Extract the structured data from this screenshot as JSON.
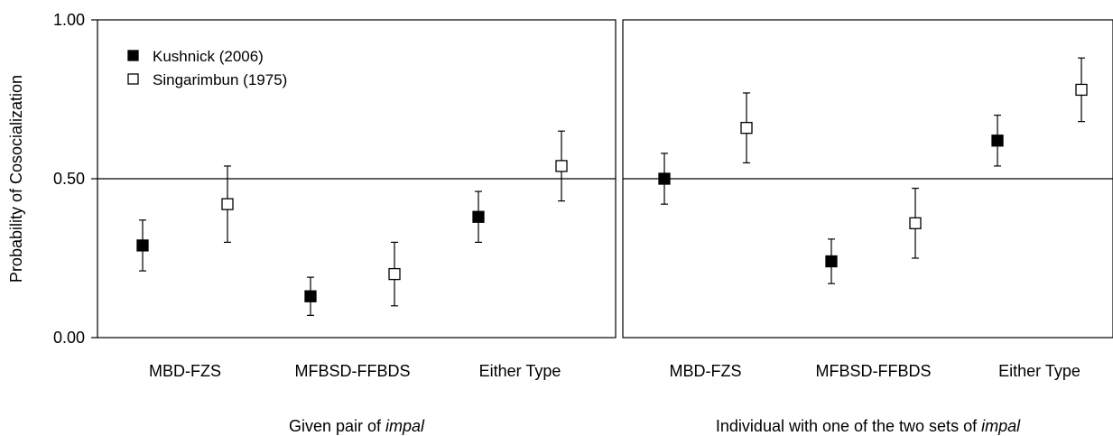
{
  "chart_data": {
    "type": "scatter",
    "ylabel": "Probability of Cosocialization",
    "ylim": [
      0,
      1
    ],
    "y_ticks": [
      "0.00",
      "0.50",
      "1.00"
    ],
    "y_tick_values": [
      0,
      0.5,
      1
    ],
    "reference_line_y": 0.5,
    "legend": {
      "placement": "top-left",
      "panel": 0
    },
    "series": [
      {
        "name": "Kushnick (2006)",
        "marker": "filled-square",
        "color": "#000000"
      },
      {
        "name": "Singarimbun (1975)",
        "marker": "open-square",
        "color": "#000000"
      }
    ],
    "panels": [
      {
        "xlabel_parts": [
          {
            "text": "Given pair of ",
            "italic": false
          },
          {
            "text": "impal",
            "italic": true
          }
        ],
        "categories": [
          "MBD-FZS",
          "MFBSD-FFBDS",
          "Either Type"
        ],
        "values": [
          [
            {
              "y": 0.29,
              "lo": 0.21,
              "hi": 0.37
            },
            {
              "y": 0.13,
              "lo": 0.07,
              "hi": 0.19
            },
            {
              "y": 0.38,
              "lo": 0.3,
              "hi": 0.46
            }
          ],
          [
            {
              "y": 0.42,
              "lo": 0.3,
              "hi": 0.54
            },
            {
              "y": 0.2,
              "lo": 0.1,
              "hi": 0.3
            },
            {
              "y": 0.54,
              "lo": 0.43,
              "hi": 0.65
            }
          ]
        ]
      },
      {
        "xlabel_parts": [
          {
            "text": "Individual with one of the two sets of ",
            "italic": false
          },
          {
            "text": "impal",
            "italic": true
          }
        ],
        "categories": [
          "MBD-FZS",
          "MFBSD-FFBDS",
          "Either Type"
        ],
        "values": [
          [
            {
              "y": 0.5,
              "lo": 0.42,
              "hi": 0.58
            },
            {
              "y": 0.24,
              "lo": 0.17,
              "hi": 0.31
            },
            {
              "y": 0.62,
              "lo": 0.54,
              "hi": 0.7
            }
          ],
          [
            {
              "y": 0.66,
              "lo": 0.55,
              "hi": 0.77
            },
            {
              "y": 0.36,
              "lo": 0.25,
              "hi": 0.47
            },
            {
              "y": 0.78,
              "lo": 0.68,
              "hi": 0.88
            }
          ]
        ]
      }
    ]
  }
}
